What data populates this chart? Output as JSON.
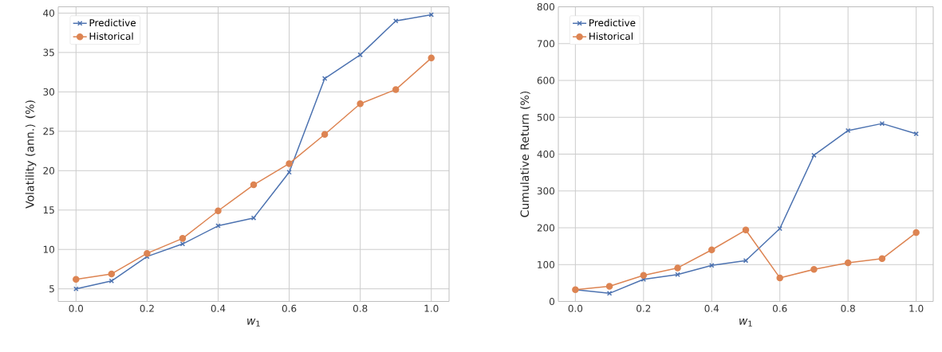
{
  "chart_data": [
    {
      "type": "line",
      "xlabel": "*w*$_{1}$",
      "ylabel": "Volatility (ann.) (%)",
      "x": [
        0.0,
        0.1,
        0.2,
        0.3,
        0.4,
        0.5,
        0.6,
        0.7,
        0.8,
        0.9,
        1.0
      ],
      "series": [
        {
          "name": "Predictive",
          "color": "#4c72b0",
          "marker": "cross",
          "values": [
            5.0,
            6.0,
            9.1,
            10.7,
            13.0,
            14.0,
            19.8,
            31.7,
            34.7,
            39.0,
            39.8
          ]
        },
        {
          "name": "Historical",
          "color": "#dd8452",
          "marker": "circle",
          "values": [
            6.2,
            6.9,
            9.5,
            11.4,
            14.9,
            18.2,
            20.9,
            24.6,
            28.5,
            30.3,
            34.3
          ]
        }
      ],
      "xlim": [
        -0.05,
        1.05
      ],
      "ylim": [
        3.4,
        40.8
      ],
      "xticks": [
        {
          "value": 0,
          "label": "0.0"
        },
        {
          "value": 0.2,
          "label": "0.2"
        },
        {
          "value": 0.4,
          "label": "0.4"
        },
        {
          "value": 0.6,
          "label": "0.6"
        },
        {
          "value": 0.8,
          "label": "0.8"
        },
        {
          "value": 1,
          "label": "1.0"
        }
      ],
      "yticks": [
        5,
        10,
        15,
        20,
        25,
        30,
        35,
        40
      ],
      "grid": true,
      "legend": "top left"
    },
    {
      "type": "line",
      "xlabel": "*w*$_{1}$",
      "ylabel": "Cumulative Return (%)",
      "x": [
        0.0,
        0.1,
        0.2,
        0.3,
        0.4,
        0.5,
        0.6,
        0.7,
        0.8,
        0.9,
        1.0
      ],
      "series": [
        {
          "name": "Predictive",
          "color": "#4c72b0",
          "marker": "cross",
          "values": [
            32,
            22,
            60,
            73,
            98,
            111,
            198,
            397,
            464,
            483,
            455
          ]
        },
        {
          "name": "Historical",
          "color": "#dd8452",
          "marker": "circle",
          "values": [
            32,
            41,
            71,
            91,
            140,
            194,
            64,
            87,
            105,
            116,
            187
          ]
        }
      ],
      "xlim": [
        -0.05,
        1.05
      ],
      "ylim": [
        0,
        800
      ],
      "xticks": [
        {
          "value": 0,
          "label": "0.0"
        },
        {
          "value": 0.2,
          "label": "0.2"
        },
        {
          "value": 0.4,
          "label": "0.4"
        },
        {
          "value": 0.6,
          "label": "0.6"
        },
        {
          "value": 0.8,
          "label": "0.8"
        },
        {
          "value": 1,
          "label": "1.0"
        }
      ],
      "yticks": [
        0,
        100,
        200,
        300,
        400,
        500,
        600,
        700,
        800
      ],
      "grid": true,
      "legend": "top left"
    }
  ]
}
